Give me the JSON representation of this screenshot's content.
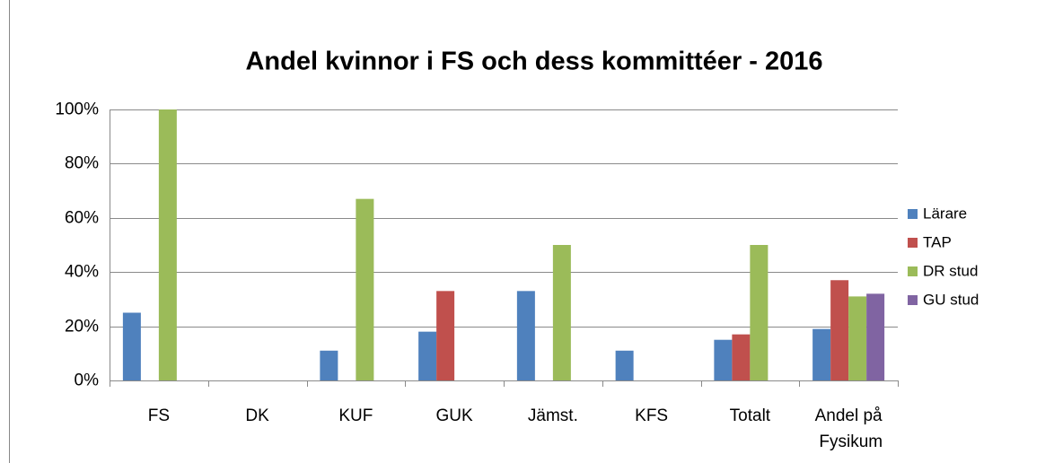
{
  "chart_data": {
    "type": "bar",
    "title": "Andel kvinnor i FS och dess kommittéer - 2016",
    "categories": [
      "FS",
      "DK",
      "KUF",
      "GUK",
      "Jämst.",
      "KFS",
      "Totalt",
      "Andel på Fysikum"
    ],
    "series": [
      {
        "name": "Lärare",
        "color": "#4f81bd",
        "values": [
          25,
          0,
          11,
          18,
          33,
          11,
          15,
          19
        ]
      },
      {
        "name": "TAP",
        "color": "#c0504d",
        "values": [
          0,
          0,
          0,
          33,
          0,
          0,
          17,
          37
        ]
      },
      {
        "name": "DR stud",
        "color": "#9bbb59",
        "values": [
          100,
          0,
          67,
          0,
          50,
          0,
          50,
          31
        ]
      },
      {
        "name": "GU stud",
        "color": "#8064a2",
        "values": [
          0,
          0,
          0,
          0,
          0,
          0,
          0,
          32
        ]
      }
    ],
    "ylim": [
      0,
      100
    ],
    "yticks": [
      {
        "value": 0,
        "label": "0%"
      },
      {
        "value": 20,
        "label": "20%"
      },
      {
        "value": 40,
        "label": "40%"
      },
      {
        "value": 60,
        "label": "60%"
      },
      {
        "value": 80,
        "label": "80%"
      },
      {
        "value": 100,
        "label": "100%"
      }
    ],
    "grid": true,
    "legend": "right"
  }
}
